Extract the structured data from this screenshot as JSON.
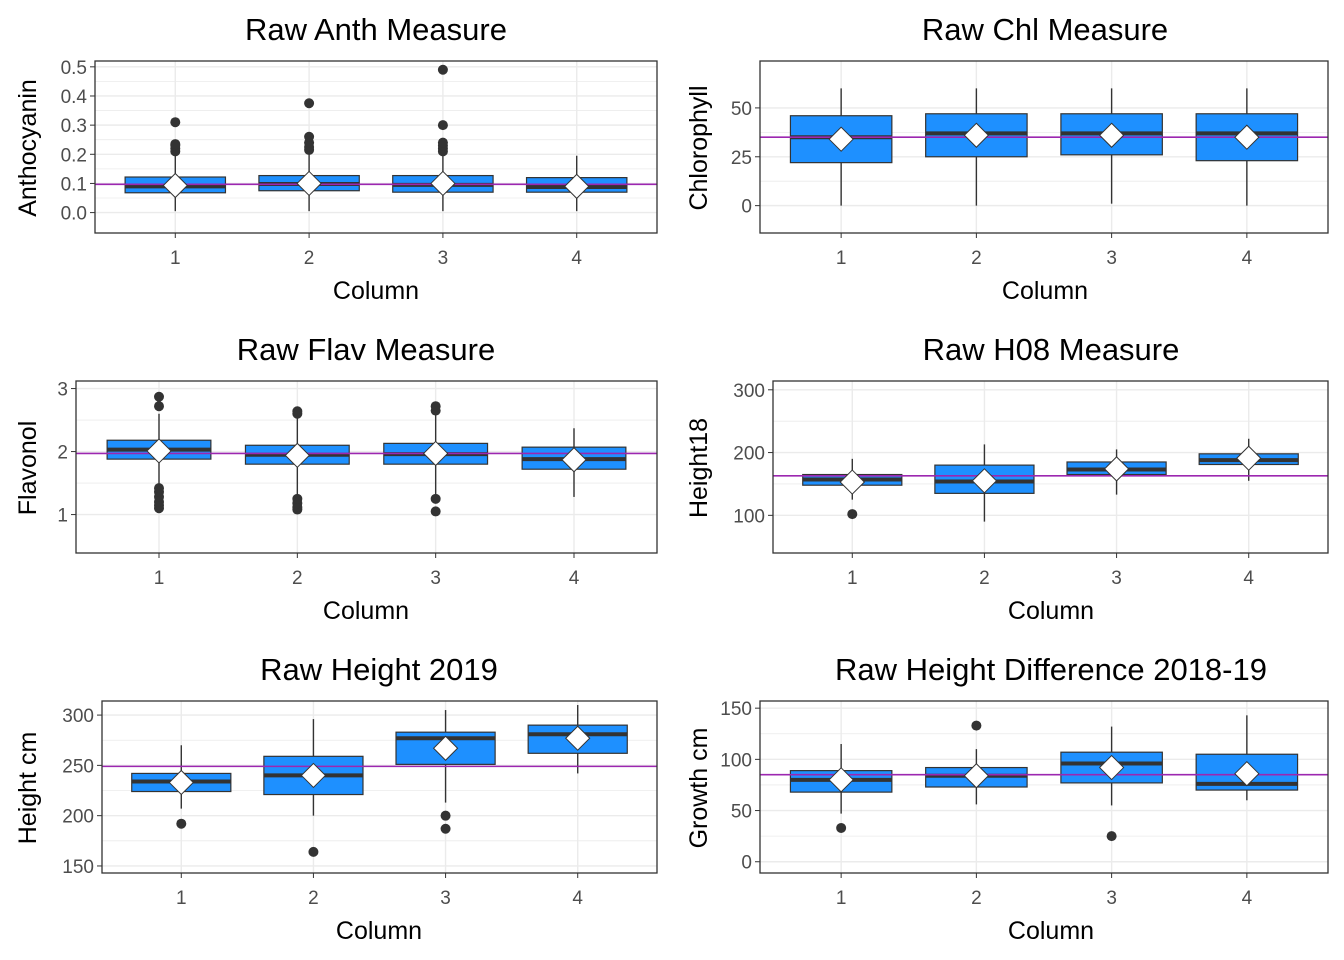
{
  "colors": {
    "box_fill": "#1e90ff",
    "box_line": "#333333",
    "mean_line": "#9c27b0",
    "mean_marker": "#ffffff",
    "outlier": "#333333",
    "grid": "#ebebeb",
    "panel_border": "#333333"
  },
  "chart_data": [
    {
      "type": "box",
      "title": "Raw Anth Measure",
      "xlabel": "Column",
      "ylabel": "Anthocyanin",
      "categories": [
        "1",
        "2",
        "3",
        "4"
      ],
      "ylim": [
        -0.07,
        0.52
      ],
      "yticks": [
        0.0,
        0.1,
        0.2,
        0.3,
        0.4,
        0.5
      ],
      "ytick_labels": [
        "0.0",
        "0.1",
        "0.2",
        "0.3",
        "0.4",
        "0.5"
      ],
      "overall_mean": 0.097,
      "boxes": [
        {
          "q1": 0.068,
          "median": 0.09,
          "q3": 0.122,
          "whisker_low": 0.005,
          "whisker_high": 0.2,
          "mean": 0.093,
          "outliers": [
            0.21,
            0.22,
            0.23,
            0.235,
            0.31
          ]
        },
        {
          "q1": 0.075,
          "median": 0.098,
          "q3": 0.127,
          "whisker_low": 0.005,
          "whisker_high": 0.2,
          "mean": 0.1,
          "outliers": [
            0.215,
            0.225,
            0.24,
            0.26,
            0.375
          ]
        },
        {
          "q1": 0.07,
          "median": 0.095,
          "q3": 0.127,
          "whisker_low": 0.005,
          "whisker_high": 0.2,
          "mean": 0.1,
          "outliers": [
            0.21,
            0.22,
            0.23,
            0.24,
            0.3,
            0.49
          ]
        },
        {
          "q1": 0.07,
          "median": 0.088,
          "q3": 0.12,
          "whisker_low": 0.005,
          "whisker_high": 0.195,
          "mean": 0.09,
          "outliers": []
        }
      ]
    },
    {
      "type": "box",
      "title": "Raw Chl Measure",
      "xlabel": "Column",
      "ylabel": "Chlorophyll",
      "categories": [
        "1",
        "2",
        "3",
        "4"
      ],
      "ylim": [
        -14,
        74
      ],
      "yticks": [
        0,
        25,
        50
      ],
      "ytick_labels": [
        "0",
        "25",
        "50"
      ],
      "overall_mean": 35,
      "boxes": [
        {
          "q1": 22,
          "median": 35,
          "q3": 46,
          "whisker_low": 0,
          "whisker_high": 60,
          "mean": 34,
          "outliers": []
        },
        {
          "q1": 25,
          "median": 37,
          "q3": 47,
          "whisker_low": 0,
          "whisker_high": 60,
          "mean": 36,
          "outliers": []
        },
        {
          "q1": 26,
          "median": 37,
          "q3": 47,
          "whisker_low": 1,
          "whisker_high": 60,
          "mean": 36,
          "outliers": []
        },
        {
          "q1": 23,
          "median": 37,
          "q3": 47,
          "whisker_low": 0,
          "whisker_high": 60,
          "mean": 35,
          "outliers": []
        }
      ]
    },
    {
      "type": "box",
      "title": "Raw Flav Measure",
      "xlabel": "Column",
      "ylabel": "Flavonol",
      "categories": [
        "1",
        "2",
        "3",
        "4"
      ],
      "ylim": [
        0.39,
        3.12
      ],
      "yticks": [
        1,
        2,
        3
      ],
      "ytick_labels": [
        "1",
        "2",
        "3"
      ],
      "overall_mean": 1.97,
      "boxes": [
        {
          "q1": 1.88,
          "median": 2.03,
          "q3": 2.18,
          "whisker_low": 1.45,
          "whisker_high": 2.6,
          "mean": 2.01,
          "outliers": [
            1.1,
            1.15,
            1.2,
            1.28,
            1.36,
            1.42,
            2.72,
            2.87
          ]
        },
        {
          "q1": 1.8,
          "median": 1.95,
          "q3": 2.1,
          "whisker_low": 1.3,
          "whisker_high": 2.55,
          "mean": 1.94,
          "outliers": [
            1.08,
            1.12,
            1.18,
            1.25,
            2.6,
            2.64
          ]
        },
        {
          "q1": 1.8,
          "median": 1.96,
          "q3": 2.13,
          "whisker_low": 1.3,
          "whisker_high": 2.6,
          "mean": 1.97,
          "outliers": [
            1.05,
            1.25,
            2.65,
            2.72
          ]
        },
        {
          "q1": 1.72,
          "median": 1.88,
          "q3": 2.07,
          "whisker_low": 1.28,
          "whisker_high": 2.37,
          "mean": 1.87,
          "outliers": []
        }
      ]
    },
    {
      "type": "box",
      "title": "Raw H08 Measure",
      "xlabel": "Column",
      "ylabel": "Height18",
      "categories": [
        "1",
        "2",
        "3",
        "4"
      ],
      "ylim": [
        40,
        314
      ],
      "yticks": [
        100,
        200,
        300
      ],
      "ytick_labels": [
        "100",
        "200",
        "300"
      ],
      "overall_mean": 163,
      "boxes": [
        {
          "q1": 148,
          "median": 157,
          "q3": 165,
          "whisker_low": 125,
          "whisker_high": 190,
          "mean": 153,
          "outliers": [
            102
          ]
        },
        {
          "q1": 135,
          "median": 154,
          "q3": 180,
          "whisker_low": 90,
          "whisker_high": 213,
          "mean": 155,
          "outliers": []
        },
        {
          "q1": 165,
          "median": 173,
          "q3": 185,
          "whisker_low": 133,
          "whisker_high": 205,
          "mean": 174,
          "outliers": []
        },
        {
          "q1": 181,
          "median": 188,
          "q3": 198,
          "whisker_low": 155,
          "whisker_high": 222,
          "mean": 191,
          "outliers": []
        }
      ]
    },
    {
      "type": "box",
      "title": "Raw Height 2019",
      "xlabel": "Column",
      "ylabel": "Height cm",
      "categories": [
        "1",
        "2",
        "3",
        "4"
      ],
      "ylim": [
        143,
        314
      ],
      "yticks": [
        150,
        200,
        250,
        300
      ],
      "ytick_labels": [
        "150",
        "200",
        "250",
        "300"
      ],
      "overall_mean": 249,
      "boxes": [
        {
          "q1": 224,
          "median": 234,
          "q3": 242,
          "whisker_low": 207,
          "whisker_high": 270,
          "mean": 233,
          "outliers": [
            192
          ]
        },
        {
          "q1": 221,
          "median": 240,
          "q3": 259,
          "whisker_low": 200,
          "whisker_high": 296,
          "mean": 240,
          "outliers": [
            164
          ]
        },
        {
          "q1": 251,
          "median": 277,
          "q3": 283,
          "whisker_low": 213,
          "whisker_high": 305,
          "mean": 267,
          "outliers": [
            187,
            200
          ]
        },
        {
          "q1": 262,
          "median": 281,
          "q3": 290,
          "whisker_low": 242,
          "whisker_high": 310,
          "mean": 277,
          "outliers": []
        }
      ]
    },
    {
      "type": "box",
      "title": "Raw Height Difference 2018-19",
      "xlabel": "Column",
      "ylabel": "Growth cm",
      "categories": [
        "1",
        "2",
        "3",
        "4"
      ],
      "ylim": [
        -11,
        157
      ],
      "yticks": [
        0,
        50,
        100,
        150
      ],
      "ytick_labels": [
        "0",
        "50",
        "100",
        "150"
      ],
      "overall_mean": 85,
      "boxes": [
        {
          "q1": 68,
          "median": 80,
          "q3": 89,
          "whisker_low": 47,
          "whisker_high": 115,
          "mean": 80,
          "outliers": [
            33
          ]
        },
        {
          "q1": 73,
          "median": 84,
          "q3": 92,
          "whisker_low": 56,
          "whisker_high": 110,
          "mean": 84,
          "outliers": [
            133
          ]
        },
        {
          "q1": 77,
          "median": 96,
          "q3": 107,
          "whisker_low": 55,
          "whisker_high": 132,
          "mean": 92,
          "outliers": [
            25
          ]
        },
        {
          "q1": 70,
          "median": 76,
          "q3": 105,
          "whisker_low": 60,
          "whisker_high": 143,
          "mean": 86,
          "outliers": []
        }
      ]
    }
  ]
}
